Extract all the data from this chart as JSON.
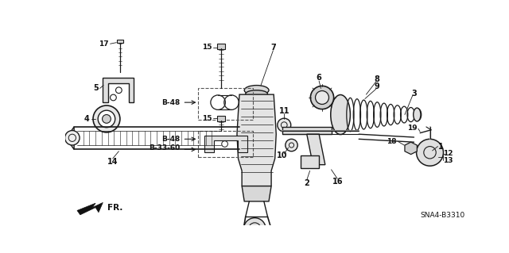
{
  "background_color": "#ffffff",
  "line_color": "#1a1a1a",
  "text_color": "#111111",
  "diagram_code": "SNA4-B3310",
  "figsize": [
    6.4,
    3.19
  ],
  "dpi": 100,
  "xlim": [
    0,
    640
  ],
  "ylim": [
    0,
    319
  ]
}
